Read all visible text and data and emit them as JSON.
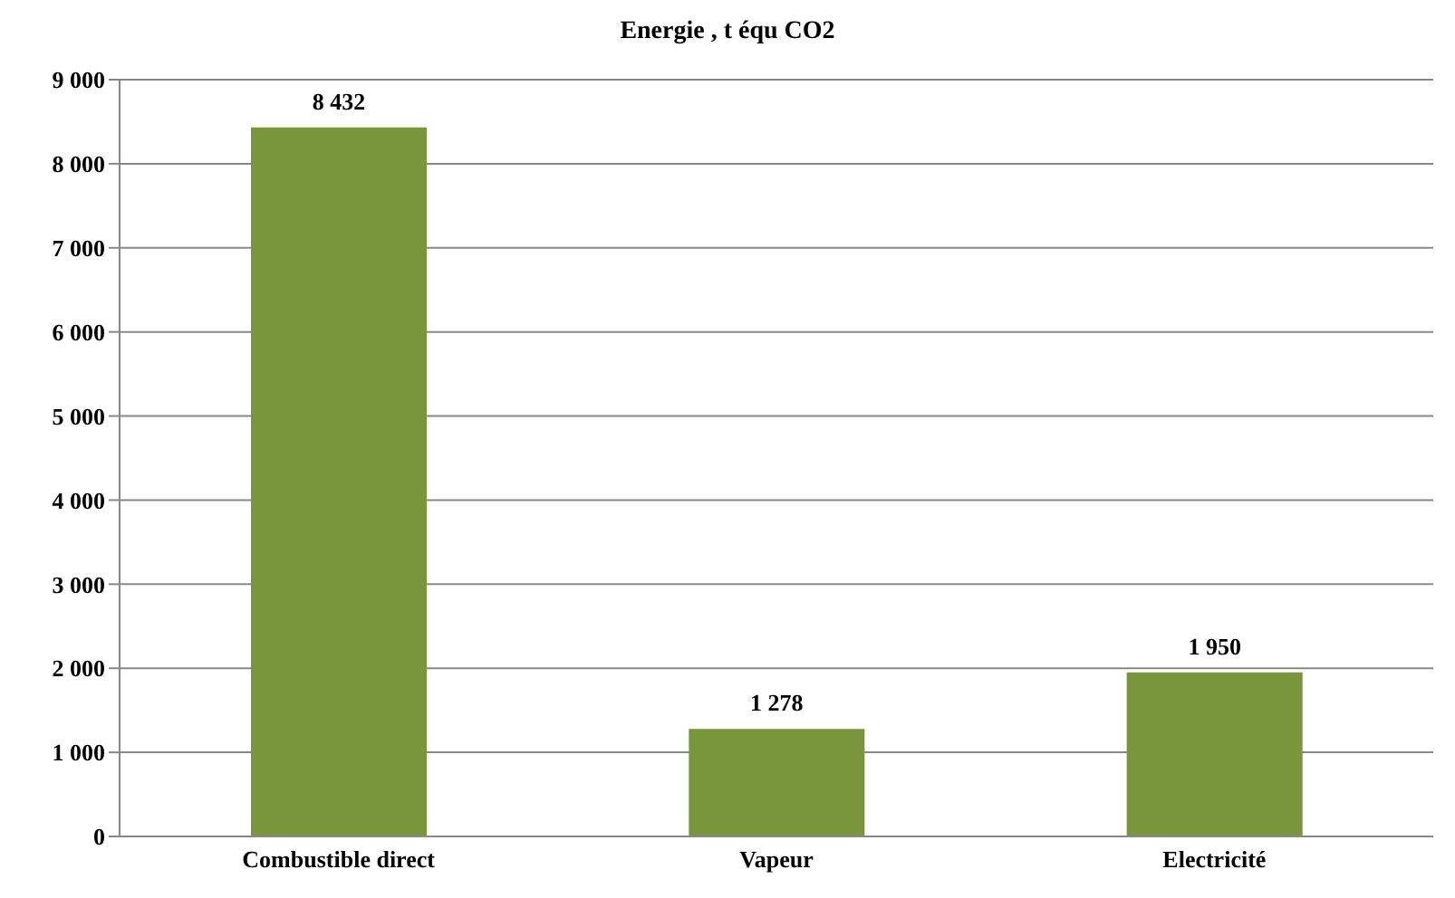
{
  "chart_data": {
    "type": "bar",
    "title": "Energie , t équ CO2",
    "categories": [
      "Combustible direct",
      "Vapeur",
      "Electricité"
    ],
    "values": [
      8432,
      1278,
      1950
    ],
    "color": "#7a963c",
    "value_labels": [
      "8 432",
      "1 278",
      "1 950"
    ],
    "ylim": [
      0,
      9000
    ],
    "yticks": [
      {
        "value": 0,
        "label": "0"
      },
      {
        "value": 1000,
        "label": "1 000"
      },
      {
        "value": 2000,
        "label": "2 000"
      },
      {
        "value": 3000,
        "label": "3 000"
      },
      {
        "value": 4000,
        "label": "4 000"
      },
      {
        "value": 5000,
        "label": "5 000"
      },
      {
        "value": 6000,
        "label": "6 000"
      },
      {
        "value": 7000,
        "label": "7 000"
      },
      {
        "value": 8000,
        "label": "8 000"
      },
      {
        "value": 9000,
        "label": "9 000"
      }
    ],
    "grid": "y"
  }
}
